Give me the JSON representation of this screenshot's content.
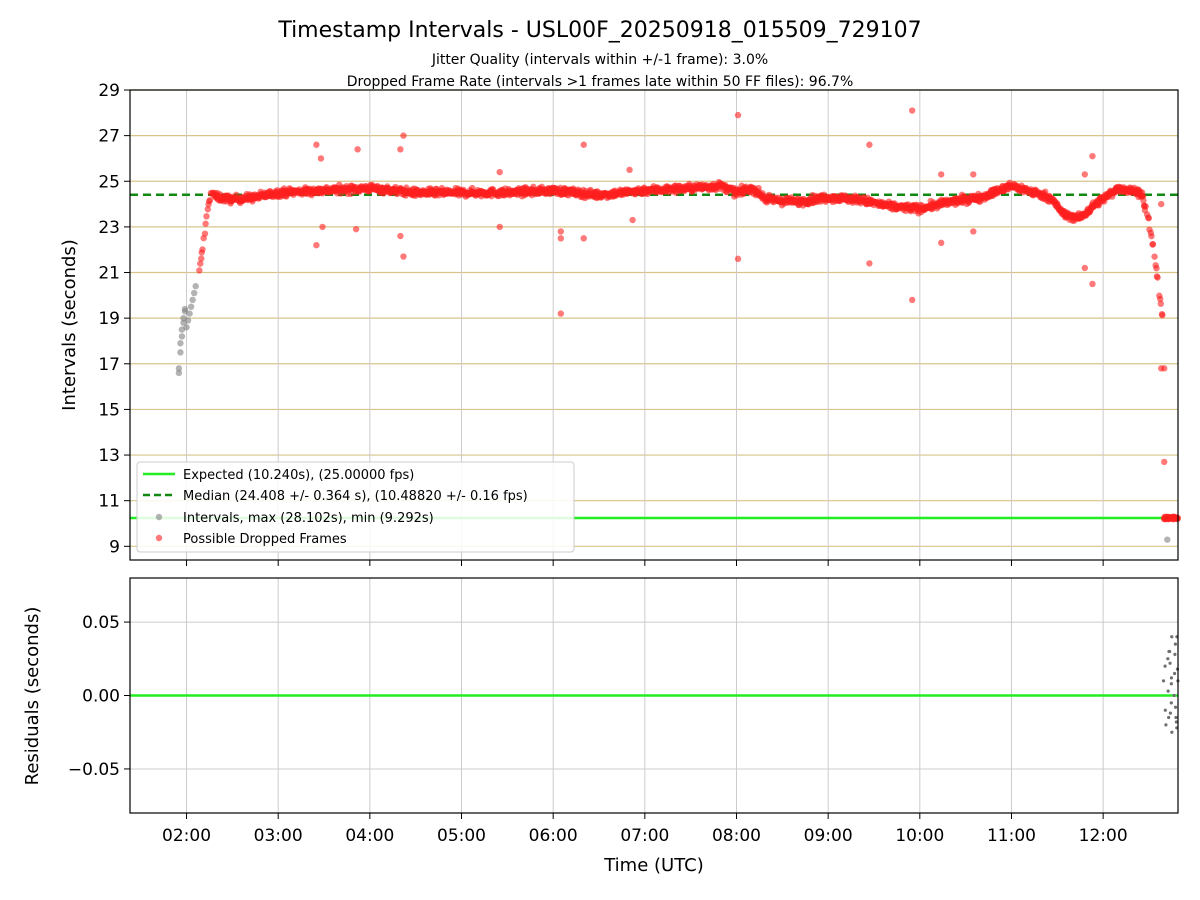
{
  "figure": {
    "title": "Timestamp Intervals - USL00F_20250918_015509_729107",
    "subtitle_1": "Jitter Quality (intervals within +/-1 frame): 3.0%",
    "subtitle_2": "Dropped Frame Rate (intervals >1 frames late within 50 FF files): 96.7%"
  },
  "chart_data": [
    {
      "type": "scatter",
      "panel": "intervals",
      "ylabel": "Intervals (seconds)",
      "xlabel": "",
      "x_is_time_utc": true,
      "xlim": [
        "01:23",
        "12:49"
      ],
      "ylim": [
        8.4,
        29.0
      ],
      "yticks": [
        9,
        11,
        13,
        15,
        17,
        19,
        21,
        23,
        25,
        27,
        29
      ],
      "xticks": [
        "02:00",
        "03:00",
        "04:00",
        "05:00",
        "06:00",
        "07:00",
        "08:00",
        "09:00",
        "10:00",
        "11:00",
        "12:00"
      ],
      "grid": true,
      "legend_position": "lower-left",
      "reference_lines": [
        {
          "name": "Expected (10.240s), (25.00000 fps)",
          "y": 10.24,
          "color": "#22ee22",
          "style": "solid"
        },
        {
          "name": "Median (24.408 +/- 0.364 s), (10.48820 +/- 0.16 fps)",
          "y": 24.408,
          "color": "#118811",
          "style": "dashed"
        }
      ],
      "series": [
        {
          "name": "Intervals, max (28.102s), min (9.292s)",
          "color": "#808080",
          "points": [
            [
              "01:55",
              16.6
            ],
            [
              "01:55",
              16.8
            ],
            [
              "01:56",
              17.5
            ],
            [
              "01:56",
              17.9
            ],
            [
              "01:57",
              18.2
            ],
            [
              "01:57",
              18.5
            ],
            [
              "01:58",
              18.8
            ],
            [
              "01:58",
              19.0
            ],
            [
              "01:59",
              19.3
            ],
            [
              "01:59",
              19.4
            ],
            [
              "02:00",
              18.6
            ],
            [
              "02:01",
              18.9
            ],
            [
              "02:02",
              19.2
            ],
            [
              "02:03",
              19.5
            ],
            [
              "02:04",
              19.8
            ],
            [
              "02:05",
              20.1
            ],
            [
              "02:06",
              20.4
            ],
            [
              "12:42",
              9.292
            ]
          ]
        },
        {
          "name": "Possible Dropped Frames",
          "color": "#ff2020",
          "trend": [
            [
              "02:08",
              20.8
            ],
            [
              "02:10",
              21.8
            ],
            [
              "02:12",
              22.8
            ],
            [
              "02:14",
              23.9
            ],
            [
              "02:16",
              24.5
            ],
            [
              "02:20",
              24.3
            ],
            [
              "02:30",
              24.2
            ],
            [
              "02:45",
              24.3
            ],
            [
              "03:00",
              24.5
            ],
            [
              "03:30",
              24.6
            ],
            [
              "04:00",
              24.7
            ],
            [
              "04:30",
              24.5
            ],
            [
              "05:00",
              24.5
            ],
            [
              "05:30",
              24.5
            ],
            [
              "06:00",
              24.6
            ],
            [
              "06:30",
              24.4
            ],
            [
              "07:00",
              24.6
            ],
            [
              "07:30",
              24.7
            ],
            [
              "07:50",
              24.8
            ],
            [
              "08:00",
              24.5
            ],
            [
              "08:10",
              24.7
            ],
            [
              "08:20",
              24.2
            ],
            [
              "08:40",
              24.1
            ],
            [
              "09:00",
              24.3
            ],
            [
              "09:20",
              24.2
            ],
            [
              "09:40",
              23.9
            ],
            [
              "10:00",
              23.8
            ],
            [
              "10:20",
              24.1
            ],
            [
              "10:40",
              24.3
            ],
            [
              "11:00",
              24.8
            ],
            [
              "11:15",
              24.5
            ],
            [
              "11:25",
              24.3
            ],
            [
              "11:35",
              23.5
            ],
            [
              "11:45",
              23.4
            ],
            [
              "11:55",
              24.0
            ],
            [
              "12:10",
              24.7
            ],
            [
              "12:25",
              24.5
            ],
            [
              "12:30",
              23.2
            ],
            [
              "12:33",
              22.0
            ],
            [
              "12:35",
              21.0
            ],
            [
              "12:37",
              20.0
            ],
            [
              "12:39",
              19.0
            ]
          ],
          "outliers": [
            [
              "03:25",
              26.6
            ],
            [
              "03:28",
              26.0
            ],
            [
              "03:52",
              26.4
            ],
            [
              "04:20",
              26.4
            ],
            [
              "04:22",
              27.0
            ],
            [
              "03:25",
              22.2
            ],
            [
              "03:29",
              23.0
            ],
            [
              "03:51",
              22.9
            ],
            [
              "04:20",
              22.6
            ],
            [
              "04:22",
              21.7
            ],
            [
              "05:25",
              25.4
            ],
            [
              "05:25",
              23.0
            ],
            [
              "06:05",
              22.5
            ],
            [
              "06:05",
              22.8
            ],
            [
              "06:05",
              19.2
            ],
            [
              "06:20",
              22.5
            ],
            [
              "06:20",
              26.6
            ],
            [
              "06:50",
              25.5
            ],
            [
              "06:52",
              23.3
            ],
            [
              "08:01",
              27.9
            ],
            [
              "08:01",
              21.6
            ],
            [
              "09:27",
              26.6
            ],
            [
              "09:27",
              21.4
            ],
            [
              "09:55",
              28.1
            ],
            [
              "09:55",
              19.8
            ],
            [
              "10:14",
              25.3
            ],
            [
              "10:14",
              22.3
            ],
            [
              "10:35",
              25.3
            ],
            [
              "10:35",
              22.8
            ],
            [
              "11:48",
              25.3
            ],
            [
              "11:48",
              21.2
            ],
            [
              "11:53",
              26.1
            ],
            [
              "11:53",
              20.5
            ],
            [
              "12:38",
              24.0
            ],
            [
              "12:38",
              16.8
            ],
            [
              "12:40",
              16.8
            ],
            [
              "12:40",
              12.7
            ]
          ],
          "tail_cluster": {
            "x_range": [
              "12:40",
              "12:49"
            ],
            "y": 10.24
          }
        }
      ]
    },
    {
      "type": "scatter",
      "panel": "residuals",
      "ylabel": "Residuals (seconds)",
      "xlabel": "Time (UTC)",
      "x_is_time_utc": true,
      "xlim": [
        "01:23",
        "12:49"
      ],
      "ylim": [
        -0.08,
        0.08
      ],
      "yticks": [
        0.05,
        0.0,
        -0.05
      ],
      "ytick_labels": [
        "0.05",
        "0.00",
        "−0.05"
      ],
      "xticks": [
        "02:00",
        "03:00",
        "04:00",
        "05:00",
        "06:00",
        "07:00",
        "08:00",
        "09:00",
        "10:00",
        "11:00",
        "12:00"
      ],
      "grid": true,
      "reference_lines": [
        {
          "y": 0.0,
          "color": "#22ee22",
          "style": "solid"
        }
      ],
      "series": [
        {
          "color": "#707070",
          "points": [
            [
              "12:41",
              -0.015
            ],
            [
              "12:41",
              0.01
            ],
            [
              "12:41",
              0.02
            ],
            [
              "12:42",
              -0.01
            ],
            [
              "12:42",
              0.003
            ],
            [
              "12:42",
              0.022
            ],
            [
              "12:42",
              0.03
            ],
            [
              "12:43",
              -0.005
            ],
            [
              "12:43",
              0.012
            ],
            [
              "12:43",
              0.025
            ],
            [
              "12:43",
              -0.02
            ],
            [
              "12:44",
              0.04
            ],
            [
              "12:44",
              0.008
            ],
            [
              "12:44",
              -0.012
            ],
            [
              "12:45",
              0.03
            ],
            [
              "12:45",
              -0.025
            ],
            [
              "12:45",
              0.015
            ],
            [
              "12:46",
              0.035
            ],
            [
              "12:46",
              -0.018
            ],
            [
              "12:46",
              0.0
            ],
            [
              "12:47",
              0.028
            ],
            [
              "12:47",
              -0.008
            ],
            [
              "12:48",
              0.018
            ],
            [
              "12:48",
              -0.022
            ],
            [
              "12:48",
              0.04
            ],
            [
              "12:49",
              0.01
            ],
            [
              "12:49",
              -0.015
            ]
          ]
        }
      ]
    }
  ]
}
